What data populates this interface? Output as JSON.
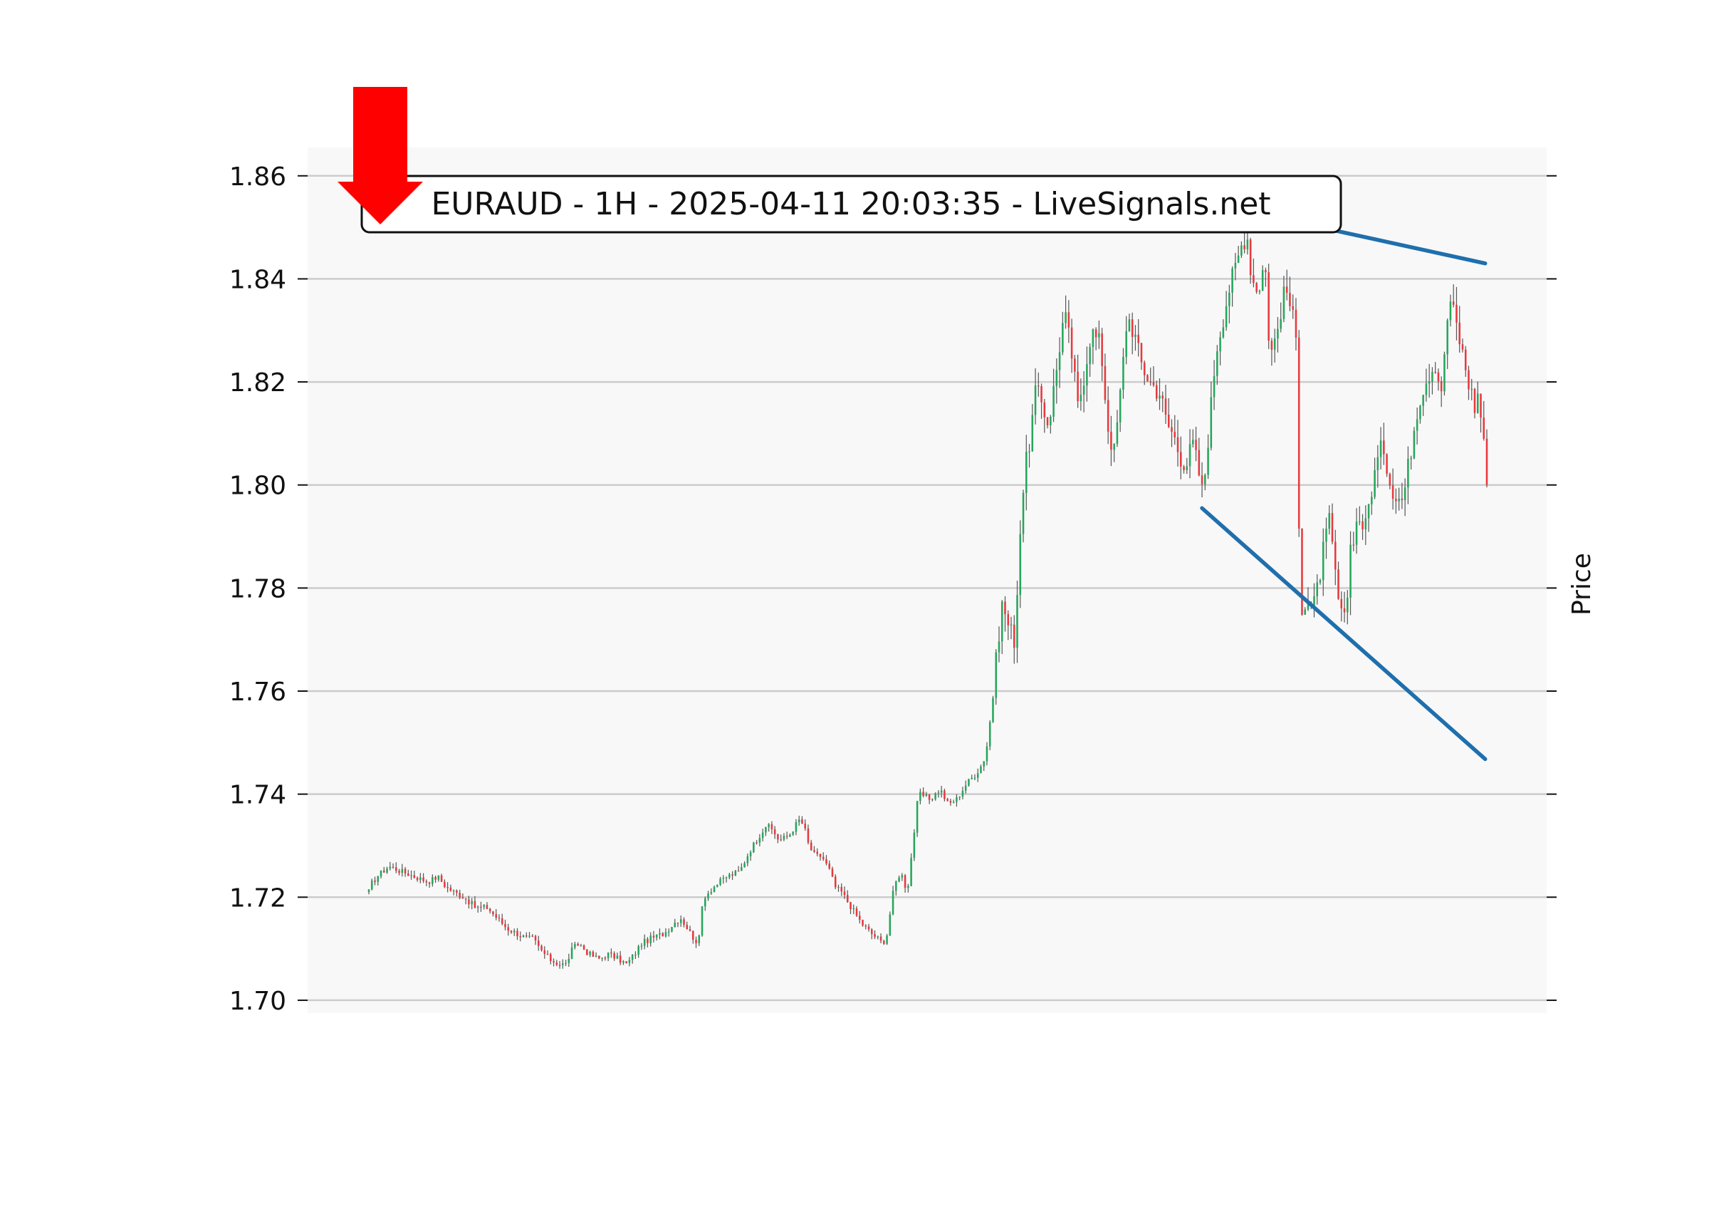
{
  "chart_data": {
    "type": "candlestick",
    "title": "EURAUD - 1H - 2025-04-11 20:03:35 - LiveSignals.net",
    "ylabel": "Price",
    "xlabel": "",
    "ylim": [
      1.6975,
      1.8655
    ],
    "yticks": [
      1.7,
      1.72,
      1.74,
      1.76,
      1.78,
      1.8,
      1.82,
      1.84,
      1.86
    ],
    "ytick_labels": [
      "1.70",
      "1.72",
      "1.74",
      "1.76",
      "1.78",
      "1.80",
      "1.82",
      "1.84",
      "1.86"
    ],
    "grid": true,
    "bar_count": 370,
    "colors": {
      "up": "#26a65b",
      "down": "#e8383d",
      "wick": "#555555",
      "trendline": "#1f6fad",
      "signal_arrow": "#ff0000",
      "plot_bg": "#f8f8f8",
      "grid": "#cccccc"
    },
    "path_points": [
      [
        0,
        1.722
      ],
      [
        5,
        1.724
      ],
      [
        12,
        1.726
      ],
      [
        20,
        1.725
      ],
      [
        28,
        1.724
      ],
      [
        36,
        1.723
      ],
      [
        42,
        1.724
      ],
      [
        47,
        1.722
      ],
      [
        52,
        1.721
      ],
      [
        58,
        1.72
      ],
      [
        65,
        1.718
      ],
      [
        72,
        1.718
      ],
      [
        78,
        1.716
      ],
      [
        84,
        1.714
      ],
      [
        90,
        1.713
      ],
      [
        96,
        1.712
      ],
      [
        100,
        1.712
      ],
      [
        104,
        1.71
      ],
      [
        110,
        1.708
      ],
      [
        116,
        1.707
      ],
      [
        120,
        1.707
      ],
      [
        124,
        1.71
      ],
      [
        128,
        1.711
      ],
      [
        134,
        1.709
      ],
      [
        140,
        1.708
      ],
      [
        146,
        1.709
      ],
      [
        152,
        1.708
      ],
      [
        157,
        1.707
      ],
      [
        162,
        1.709
      ],
      [
        166,
        1.711
      ],
      [
        172,
        1.712
      ],
      [
        180,
        1.713
      ],
      [
        186,
        1.715
      ],
      [
        190,
        1.716
      ],
      [
        194,
        1.714
      ],
      [
        198,
        1.712
      ],
      [
        201,
        1.711
      ],
      [
        202,
        1.716
      ],
      [
        204,
        1.72
      ],
      [
        210,
        1.722
      ],
      [
        218,
        1.724
      ],
      [
        226,
        1.725
      ],
      [
        232,
        1.729
      ],
      [
        238,
        1.732
      ],
      [
        242,
        1.734
      ],
      [
        246,
        1.733
      ],
      [
        250,
        1.731
      ],
      [
        256,
        1.732
      ],
      [
        262,
        1.735
      ],
      [
        265,
        1.734
      ],
      [
        268,
        1.73
      ],
      [
        272,
        1.728
      ],
      [
        276,
        1.728
      ],
      [
        281,
        1.725
      ],
      [
        284,
        1.722
      ],
      [
        288,
        1.721
      ],
      [
        294,
        1.718
      ],
      [
        300,
        1.715
      ],
      [
        306,
        1.713
      ],
      [
        310,
        1.712
      ],
      [
        313,
        1.711
      ],
      [
        316,
        1.713
      ],
      [
        318,
        1.718
      ],
      [
        320,
        1.722
      ],
      [
        324,
        1.725
      ],
      [
        328,
        1.721
      ],
      [
        332,
        1.732
      ],
      [
        334,
        1.738
      ],
      [
        336,
        1.74
      ],
      [
        342,
        1.739
      ],
      [
        348,
        1.741
      ],
      [
        353,
        1.738
      ],
      [
        358,
        1.739
      ],
      [
        364,
        1.742
      ],
      [
        370,
        1.744
      ],
      [
        374,
        1.746
      ],
      [
        376,
        1.748
      ],
      [
        378,
        1.753
      ],
      [
        380,
        1.758
      ],
      [
        382,
        1.765
      ],
      [
        384,
        1.772
      ],
      [
        386,
        1.777
      ],
      [
        388,
        1.775
      ],
      [
        390,
        1.772
      ],
      [
        392,
        1.771
      ],
      [
        394,
        1.77
      ],
      [
        396,
        1.788
      ],
      [
        398,
        1.797
      ],
      [
        400,
        1.803
      ],
      [
        404,
        1.812
      ],
      [
        406,
        1.818
      ],
      [
        410,
        1.816
      ],
      [
        414,
        1.812
      ],
      [
        418,
        1.82
      ],
      [
        422,
        1.83
      ],
      [
        424,
        1.833
      ],
      [
        428,
        1.826
      ],
      [
        432,
        1.815
      ],
      [
        436,
        1.822
      ],
      [
        440,
        1.83
      ],
      [
        446,
        1.827
      ],
      [
        450,
        1.812
      ],
      [
        454,
        1.806
      ],
      [
        458,
        1.818
      ],
      [
        462,
        1.833
      ],
      [
        466,
        1.83
      ],
      [
        470,
        1.824
      ],
      [
        476,
        1.82
      ],
      [
        482,
        1.818
      ],
      [
        486,
        1.812
      ],
      [
        490,
        1.81
      ],
      [
        494,
        1.806
      ],
      [
        498,
        1.804
      ],
      [
        502,
        1.808
      ],
      [
        506,
        1.802
      ],
      [
        508,
        1.798
      ],
      [
        510,
        1.804
      ],
      [
        512,
        1.812
      ],
      [
        514,
        1.818
      ],
      [
        516,
        1.826
      ],
      [
        520,
        1.832
      ],
      [
        524,
        1.838
      ],
      [
        528,
        1.842
      ],
      [
        532,
        1.847
      ],
      [
        535,
        1.849
      ],
      [
        538,
        1.84
      ],
      [
        542,
        1.838
      ],
      [
        546,
        1.844
      ],
      [
        548,
        1.83
      ],
      [
        550,
        1.826
      ],
      [
        553,
        1.829
      ],
      [
        556,
        1.835
      ],
      [
        559,
        1.838
      ],
      [
        562,
        1.834
      ],
      [
        565,
        1.828
      ],
      [
        566,
        1.826
      ],
      [
        567,
        1.78
      ],
      [
        569,
        1.776
      ],
      [
        572,
        1.778
      ],
      [
        575,
        1.775
      ],
      [
        578,
        1.78
      ],
      [
        582,
        1.788
      ],
      [
        585,
        1.793
      ],
      [
        588,
        1.785
      ],
      [
        591,
        1.777
      ],
      [
        594,
        1.772
      ],
      [
        596,
        1.778
      ],
      [
        598,
        1.788
      ],
      [
        601,
        1.792
      ],
      [
        604,
        1.794
      ],
      [
        607,
        1.791
      ],
      [
        610,
        1.798
      ],
      [
        614,
        1.804
      ],
      [
        618,
        1.808
      ],
      [
        622,
        1.801
      ],
      [
        626,
        1.798
      ],
      [
        630,
        1.797
      ],
      [
        634,
        1.805
      ],
      [
        638,
        1.814
      ],
      [
        642,
        1.819
      ],
      [
        646,
        1.822
      ],
      [
        650,
        1.824
      ],
      [
        653,
        1.818
      ],
      [
        656,
        1.826
      ],
      [
        658,
        1.837
      ],
      [
        662,
        1.832
      ],
      [
        666,
        1.826
      ],
      [
        670,
        1.82
      ],
      [
        674,
        1.815
      ],
      [
        676,
        1.818
      ],
      [
        678,
        1.812
      ],
      [
        680,
        1.808
      ],
      [
        682,
        1.8
      ]
    ],
    "trendlines": [
      {
        "x": [
          538,
          682
        ],
        "y": [
          1.853,
          1.843
        ]
      },
      {
        "x": [
          509,
          682
        ],
        "y": [
          1.7955,
          1.7468
        ]
      }
    ],
    "signal": {
      "direction": "down"
    }
  }
}
